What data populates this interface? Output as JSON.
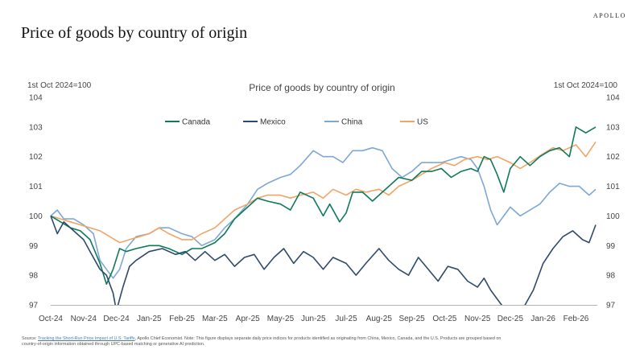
{
  "header": {
    "brand": "APOLLO",
    "title": "Price of goods by country of origin"
  },
  "axis_notes": {
    "left": "1st Oct 2024=100",
    "right": "1st Oct 2024=100"
  },
  "colors": {
    "Canada": "#0f7a5b",
    "Mexico": "#2e4a6b",
    "China": "#7ea8d3",
    "US": "#f0a566"
  },
  "chart_data": {
    "type": "line",
    "title": "Price of goods by country of origin",
    "ylabel_left": "1st Oct 2024=100",
    "ylabel_right": "1st Oct 2024=100",
    "ylim": [
      97,
      104
    ],
    "yticks": [
      97,
      98,
      99,
      100,
      101,
      102,
      103,
      104
    ],
    "xlim": [
      0,
      16.65
    ],
    "xticks": [
      "Oct-24",
      "Nov-24",
      "Dec-24",
      "Jan-25",
      "Feb-25",
      "Mar-25",
      "Apr-25",
      "May-25",
      "Jun-25",
      "Jul-25",
      "Aug-25",
      "Sep-25",
      "Oct-25",
      "Nov-25",
      "Dec-25",
      "Jan-26",
      "Feb-26"
    ],
    "legend_position": "top-center",
    "grid": false,
    "series": [
      {
        "name": "Canada",
        "x": [
          0,
          0.3,
          0.6,
          0.9,
          1.2,
          1.5,
          1.7,
          1.9,
          2.1,
          2.3,
          2.6,
          3.0,
          3.3,
          3.6,
          4.0,
          4.3,
          4.6,
          5.0,
          5.3,
          5.6,
          6.0,
          6.3,
          6.6,
          7.0,
          7.3,
          7.6,
          8.0,
          8.3,
          8.5,
          8.8,
          9.0,
          9.2,
          9.5,
          9.8,
          10.1,
          10.3,
          10.6,
          11.0,
          11.3,
          11.6,
          11.9,
          12.2,
          12.5,
          12.8,
          13.0,
          13.2,
          13.4,
          13.6,
          13.8,
          14.0,
          14.3,
          14.6,
          14.9,
          15.2,
          15.5,
          15.8,
          16.0,
          16.3,
          16.6
        ],
        "y": [
          100.0,
          99.8,
          99.6,
          99.5,
          99.2,
          98.4,
          97.7,
          98.2,
          98.9,
          98.8,
          98.9,
          99.0,
          99.0,
          98.9,
          98.7,
          98.9,
          98.9,
          99.1,
          99.4,
          99.9,
          100.3,
          100.6,
          100.5,
          100.4,
          100.2,
          100.8,
          100.6,
          100.0,
          100.4,
          99.8,
          100.1,
          100.8,
          100.8,
          100.5,
          100.8,
          101.0,
          101.3,
          101.2,
          101.5,
          101.5,
          101.6,
          101.3,
          101.5,
          101.6,
          101.5,
          102.0,
          101.9,
          101.4,
          100.8,
          101.6,
          102.0,
          101.7,
          102.0,
          102.2,
          102.3,
          102.0,
          103.0,
          102.8,
          103.0
        ]
      },
      {
        "name": "Mexico",
        "x": [
          0,
          0.2,
          0.4,
          0.7,
          1.0,
          1.2,
          1.5,
          1.7,
          1.9,
          2.0,
          2.2,
          2.4,
          2.6,
          3.0,
          3.4,
          3.8,
          4.1,
          4.4,
          4.7,
          5.0,
          5.3,
          5.6,
          5.9,
          6.2,
          6.5,
          6.8,
          7.1,
          7.4,
          7.7,
          8.0,
          8.3,
          8.6,
          9.0,
          9.3,
          9.6,
          10.0,
          10.3,
          10.6,
          10.9,
          11.2,
          11.5,
          11.8,
          12.1,
          12.4,
          12.7,
          13.0,
          13.2,
          13.4,
          13.6,
          13.8,
          14.1,
          14.4,
          14.7,
          15.0,
          15.3,
          15.6,
          15.9,
          16.2,
          16.4,
          16.6
        ],
        "y": [
          100.0,
          99.4,
          99.8,
          99.5,
          99.2,
          98.8,
          98.2,
          98.0,
          97.4,
          96.8,
          97.6,
          98.3,
          98.5,
          98.8,
          98.9,
          98.7,
          98.8,
          98.5,
          98.8,
          98.5,
          98.7,
          98.3,
          98.6,
          98.7,
          98.2,
          98.6,
          98.9,
          98.4,
          98.8,
          98.6,
          98.2,
          98.6,
          98.4,
          98.0,
          98.4,
          98.9,
          98.5,
          98.2,
          98.0,
          98.6,
          98.2,
          97.8,
          98.3,
          98.2,
          97.8,
          97.6,
          97.9,
          97.5,
          97.2,
          96.9,
          96.6,
          96.9,
          97.5,
          98.4,
          98.9,
          99.3,
          99.5,
          99.2,
          99.1,
          99.7
        ]
      },
      {
        "name": "China",
        "x": [
          0,
          0.2,
          0.4,
          0.7,
          1.0,
          1.3,
          1.5,
          1.7,
          1.9,
          2.1,
          2.3,
          2.6,
          3.0,
          3.3,
          3.6,
          4.0,
          4.3,
          4.6,
          5.0,
          5.3,
          5.6,
          6.0,
          6.3,
          6.6,
          7.0,
          7.3,
          7.6,
          8.0,
          8.3,
          8.6,
          8.9,
          9.2,
          9.5,
          9.8,
          10.1,
          10.4,
          10.7,
          11.0,
          11.3,
          11.6,
          11.9,
          12.2,
          12.5,
          12.8,
          13.0,
          13.2,
          13.4,
          13.6,
          13.8,
          14.0,
          14.3,
          14.6,
          14.9,
          15.2,
          15.5,
          15.8,
          16.1,
          16.4,
          16.6
        ],
        "y": [
          100.0,
          100.2,
          99.9,
          99.9,
          99.7,
          99.4,
          98.5,
          98.2,
          97.9,
          98.2,
          98.9,
          99.3,
          99.4,
          99.6,
          99.6,
          99.4,
          99.3,
          99.0,
          99.2,
          99.6,
          99.9,
          100.4,
          100.9,
          101.1,
          101.3,
          101.4,
          101.7,
          102.2,
          102.0,
          102.0,
          101.8,
          102.2,
          102.2,
          102.3,
          102.2,
          101.6,
          101.3,
          101.5,
          101.8,
          101.8,
          101.8,
          101.9,
          102.0,
          101.9,
          101.6,
          101.0,
          100.2,
          99.7,
          100.0,
          100.3,
          100.0,
          100.2,
          100.4,
          100.8,
          101.1,
          101.0,
          101.0,
          100.7,
          100.9
        ]
      },
      {
        "name": "US",
        "x": [
          0,
          0.3,
          0.6,
          0.9,
          1.2,
          1.5,
          1.8,
          2.1,
          2.4,
          2.7,
          3.0,
          3.3,
          3.6,
          4.0,
          4.3,
          4.6,
          5.0,
          5.3,
          5.6,
          6.0,
          6.3,
          6.6,
          7.0,
          7.3,
          7.6,
          8.0,
          8.3,
          8.6,
          9.0,
          9.3,
          9.6,
          10.0,
          10.3,
          10.6,
          11.0,
          11.3,
          11.6,
          12.0,
          12.3,
          12.6,
          13.0,
          13.3,
          13.6,
          14.0,
          14.3,
          14.6,
          15.0,
          15.3,
          15.6,
          16.0,
          16.3,
          16.6
        ],
        "y": [
          100.0,
          99.9,
          99.8,
          99.7,
          99.6,
          99.5,
          99.3,
          99.1,
          99.2,
          99.3,
          99.4,
          99.6,
          99.4,
          99.2,
          99.2,
          99.4,
          99.6,
          99.9,
          100.2,
          100.4,
          100.6,
          100.7,
          100.7,
          100.6,
          100.7,
          100.8,
          100.6,
          100.9,
          100.7,
          100.9,
          100.8,
          100.9,
          100.7,
          101.0,
          101.2,
          101.4,
          101.6,
          101.8,
          101.7,
          101.9,
          102.0,
          101.9,
          102.0,
          101.8,
          101.6,
          101.8,
          102.1,
          102.3,
          102.2,
          102.4,
          102.0,
          102.5
        ]
      }
    ]
  },
  "footnote": {
    "prefix": "Source: ",
    "link_text": "Tracking the Short-Run Price Impact of U.S. Tariffs",
    "rest": ", Apollo Chief Economist. Note: This figure displays separate daily price indices for products identified as originating from China, Mexico, Canada, and the U.S. Products are grouped based on country-of-origin information obtained through UPC-based matching or generative AI prediction."
  }
}
